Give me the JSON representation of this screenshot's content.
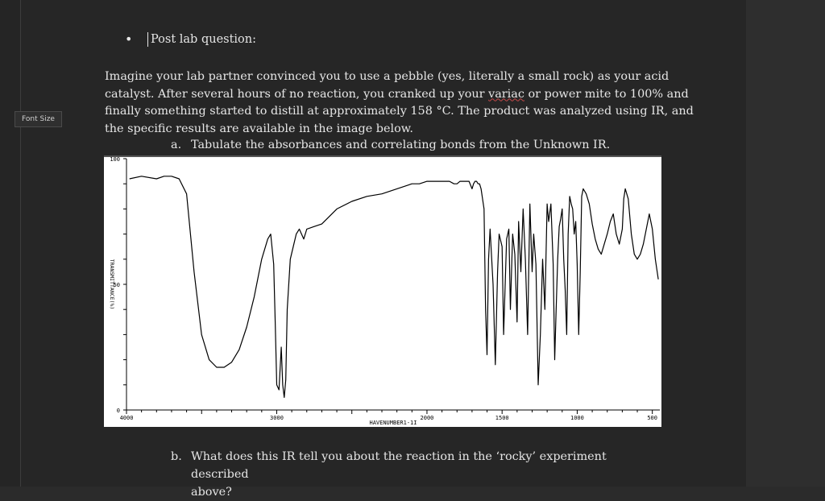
{
  "sidebar": {
    "font_size_label": "Font Size"
  },
  "document": {
    "bullet_glyph": "•",
    "heading": "Post lab question:",
    "paragraph_lines": [
      "Imagine your lab partner convinced you to use a pebble (yes, literally a small rock) as your acid",
      "catalyst. After several hours of no reaction, you cranked up your ",
      "finally something started to distill at approximately 158 °C. The product was analyzed using IR, and",
      "the specific results are available in the image below."
    ],
    "paragraph_line2_underlined": "variac",
    "paragraph_line2_rest": " or power mite to 100% and",
    "question_a_marker": "a.",
    "question_a": "Tabulate the absorbances and correlating bonds from the Unknown IR.",
    "question_b_marker": "b.",
    "question_b_line1": "What does this IR tell you about the reaction in the ‘rocky’ experiment described",
    "question_b_line2": "above?"
  },
  "chart_data": {
    "type": "line",
    "title": "",
    "xlabel": "HAVENUMBER1-1I",
    "ylabel": "TRANSMITTANCE(%)",
    "xlim": [
      4000,
      450
    ],
    "ylim": [
      0,
      100
    ],
    "x_ticks": [
      4000,
      3000,
      2000,
      1500,
      1000,
      500
    ],
    "x_tick_labels": [
      "4000",
      "3000",
      "2000",
      "1500",
      "1000",
      "500"
    ],
    "y_ticks": [
      0,
      50,
      100
    ],
    "y_tick_labels": [
      "0",
      "50",
      "100"
    ],
    "grid": false,
    "series": [
      {
        "x": [
          3980,
          3900,
          3800,
          3750,
          3700,
          3650,
          3600,
          3550,
          3500,
          3450,
          3400,
          3350,
          3300,
          3250,
          3200,
          3150,
          3100,
          3060,
          3040,
          3020,
          3010,
          3000,
          2985,
          2970,
          2960,
          2950,
          2940,
          2930,
          2910,
          2890,
          2870,
          2850,
          2820,
          2800,
          2750,
          2700,
          2600,
          2500,
          2400,
          2300,
          2200,
          2100,
          2050,
          2000,
          1950,
          1900,
          1850,
          1820,
          1800,
          1780,
          1760,
          1740,
          1720,
          1700,
          1690,
          1680,
          1670,
          1660,
          1650,
          1640,
          1620,
          1610,
          1600,
          1590,
          1580,
          1560,
          1545,
          1530,
          1520,
          1500,
          1490,
          1470,
          1455,
          1445,
          1430,
          1415,
          1400,
          1390,
          1375,
          1360,
          1345,
          1330,
          1315,
          1300,
          1290,
          1275,
          1260,
          1245,
          1230,
          1215,
          1200,
          1190,
          1175,
          1160,
          1150,
          1140,
          1130,
          1120,
          1110,
          1100,
          1090,
          1080,
          1070,
          1060,
          1050,
          1040,
          1030,
          1020,
          1010,
          1000,
          990,
          980,
          970,
          960,
          940,
          920,
          900,
          880,
          860,
          840,
          820,
          800,
          780,
          760,
          740,
          720,
          700,
          690,
          680,
          660,
          640,
          620,
          600,
          580,
          560,
          540,
          520,
          500,
          480,
          460
        ],
        "y": [
          92,
          93,
          92,
          93,
          93,
          92,
          86,
          55,
          30,
          20,
          17,
          17,
          19,
          24,
          33,
          45,
          60,
          68,
          70,
          58,
          35,
          10,
          8,
          25,
          10,
          5,
          12,
          40,
          60,
          65,
          70,
          72,
          68,
          72,
          73,
          74,
          80,
          83,
          85,
          86,
          88,
          90,
          90,
          91,
          91,
          91,
          91,
          90,
          90,
          91,
          91,
          91,
          91,
          88,
          90,
          91,
          91,
          90,
          90,
          88,
          80,
          40,
          22,
          60,
          72,
          50,
          18,
          55,
          70,
          65,
          30,
          68,
          72,
          40,
          70,
          62,
          35,
          75,
          55,
          80,
          60,
          30,
          82,
          55,
          70,
          58,
          10,
          30,
          60,
          40,
          82,
          75,
          82,
          58,
          20,
          40,
          60,
          73,
          76,
          80,
          60,
          48,
          30,
          70,
          85,
          82,
          80,
          70,
          75,
          58,
          30,
          55,
          85,
          88,
          86,
          82,
          74,
          68,
          64,
          62,
          66,
          70,
          75,
          78,
          70,
          66,
          72,
          84,
          88,
          84,
          70,
          62,
          60,
          62,
          66,
          72,
          78,
          72,
          60,
          52
        ]
      }
    ]
  }
}
